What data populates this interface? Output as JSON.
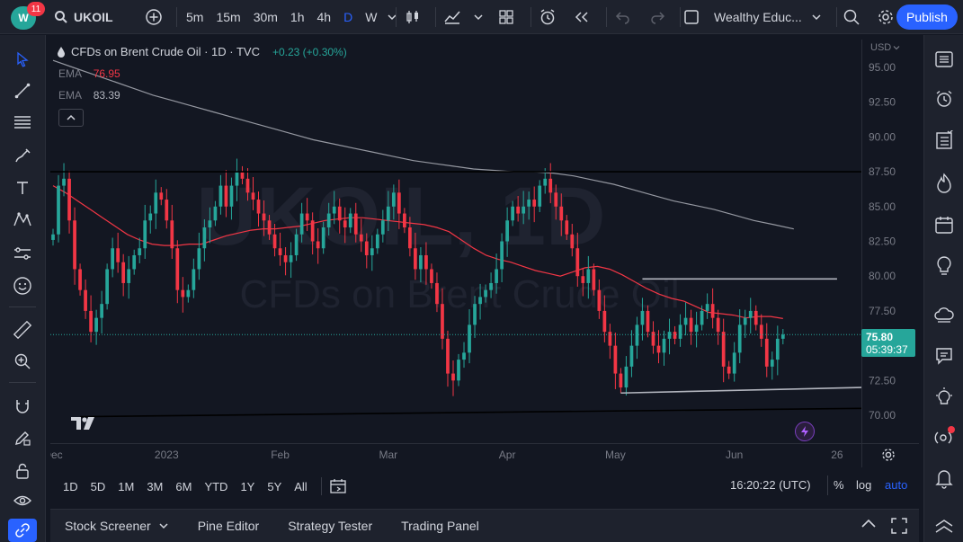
{
  "header": {
    "avatar_initials": "W",
    "notifications": "11",
    "symbol": "UKOIL",
    "intervals": [
      "5m",
      "15m",
      "30m",
      "1h",
      "4h",
      "D",
      "W"
    ],
    "active_interval": "D",
    "layout_name": "Wealthy Educ...",
    "publish_label": "Publish"
  },
  "legend": {
    "title": "CFDs on Brent Crude Oil · 1D · TVC",
    "change": "+0.23 (+0.30%)",
    "ema1_label": "EMA",
    "ema1_value": "76.95",
    "ema2_label": "EMA",
    "ema2_value": "83.39"
  },
  "watermark": {
    "symbol": "UKOIL, 1D",
    "description": "CFDs on Brent Crude Oil"
  },
  "axis": {
    "currency": "USD",
    "last_price": "75.80",
    "countdown": "05:39:37"
  },
  "range_bar": {
    "ranges": [
      "1D",
      "5D",
      "1M",
      "3M",
      "6M",
      "YTD",
      "1Y",
      "5Y",
      "All"
    ],
    "clock": "16:20:22 (UTC)",
    "percent_label": "%",
    "log_label": "log",
    "auto_label": "auto"
  },
  "bottom_panel": {
    "tabs": [
      "Stock Screener",
      "Pine Editor",
      "Strategy Tester",
      "Trading Panel"
    ]
  },
  "colors": {
    "up": "#26a69a",
    "down": "#f23645",
    "ema_fast": "#f23645",
    "ema_slow": "#9598a1",
    "accent": "#2962ff"
  },
  "chart_data": {
    "type": "candlestick",
    "ylim": [
      68.0,
      97.0
    ],
    "y_ticks": [
      70.0,
      72.5,
      75.0,
      77.5,
      80.0,
      82.5,
      85.0,
      87.5,
      90.0,
      92.5,
      95.0
    ],
    "y_tick_labels": [
      "70.00",
      "72.50",
      "",
      "77.50",
      "80.00",
      "82.50",
      "85.00",
      "87.50",
      "90.00",
      "92.50",
      "95.00"
    ],
    "x_ticks": [
      {
        "label": "Dec",
        "index": 0
      },
      {
        "label": "2023",
        "index": 21
      },
      {
        "label": "Feb",
        "index": 42
      },
      {
        "label": "Mar",
        "index": 62
      },
      {
        "label": "Apr",
        "index": 84
      },
      {
        "label": "May",
        "index": 104
      },
      {
        "label": "Jun",
        "index": 126
      },
      {
        "label": "26",
        "index": 145
      }
    ],
    "total_slots": 150,
    "closes": [
      83.0,
      86.5,
      87.0,
      84.0,
      80.5,
      79.0,
      77.5,
      76.0,
      77.0,
      78.0,
      80.5,
      82.0,
      81.0,
      79.5,
      80.5,
      81.5,
      82.0,
      84.0,
      84.5,
      86.0,
      85.5,
      84.0,
      82.0,
      79.0,
      78.5,
      79.0,
      80.5,
      82.0,
      83.5,
      84.0,
      85.0,
      86.5,
      85.0,
      86.5,
      87.5,
      87.0,
      86.0,
      85.5,
      84.5,
      84.0,
      83.0,
      82.0,
      81.5,
      81.0,
      81.5,
      83.0,
      84.5,
      84.0,
      82.5,
      82.0,
      83.5,
      84.5,
      85.0,
      84.0,
      83.5,
      84.5,
      83.0,
      82.5,
      81.5,
      82.0,
      83.0,
      84.0,
      85.0,
      86.0,
      84.5,
      83.5,
      82.0,
      80.5,
      81.5,
      80.5,
      79.5,
      78.0,
      75.5,
      73.0,
      72.5,
      74.0,
      74.5,
      76.5,
      78.0,
      78.5,
      79.0,
      79.5,
      80.5,
      82.5,
      84.0,
      85.0,
      84.5,
      85.0,
      85.5,
      85.0,
      86.5,
      87.0,
      86.0,
      85.0,
      84.0,
      83.0,
      82.0,
      80.0,
      79.5,
      80.5,
      79.0,
      77.5,
      76.0,
      75.0,
      73.0,
      72.0,
      73.5,
      75.0,
      76.5,
      77.5,
      76.0,
      75.0,
      74.5,
      75.5,
      76.0,
      75.5,
      76.5,
      77.0,
      76.0,
      76.5,
      77.5,
      78.0,
      77.0,
      76.0,
      73.5,
      73.0,
      74.5,
      76.5,
      77.0,
      77.5,
      76.5,
      75.5,
      73.5,
      74.0,
      75.5,
      75.8
    ],
    "ema_fast": [
      86.5,
      86.0,
      85.4,
      84.8,
      84.2,
      83.6,
      83.0,
      82.6,
      82.3,
      82.2,
      82.2,
      82.3,
      82.3,
      82.6,
      82.9,
      83.1,
      83.3,
      83.4,
      83.4,
      83.5,
      83.6,
      83.8,
      84.0,
      84.1,
      84.2,
      84.2,
      84.1,
      84.0,
      83.9,
      83.8,
      83.7,
      83.5,
      83.2,
      82.6,
      82.0,
      81.5,
      81.2,
      81.0,
      80.7,
      80.4,
      80.2,
      80.0,
      80.3,
      80.6,
      80.7,
      80.5,
      80.1,
      79.6,
      79.1,
      78.7,
      78.4,
      78.2,
      77.8,
      77.4,
      77.3,
      77.2,
      77.0,
      77.1,
      77.1,
      76.95
    ],
    "ema_fast_start": 0,
    "ema_slow": [
      95.5,
      95.0,
      94.5,
      94.0,
      93.5,
      93.0,
      92.6,
      92.2,
      91.8,
      91.4,
      91.0,
      90.6,
      90.2,
      89.8,
      89.5,
      89.2,
      88.9,
      88.6,
      88.3,
      88.1,
      87.9,
      87.7,
      87.6,
      87.5,
      87.5,
      87.4,
      87.2,
      86.9,
      86.6,
      86.2,
      85.8,
      85.4,
      85.1,
      84.8,
      84.4,
      84.0,
      83.7,
      83.39
    ],
    "ema_slow_end": 137,
    "resistance": {
      "y": 87.5
    },
    "support_trend": {
      "y_start": 69.9,
      "y_end": 70.5
    },
    "range_top": {
      "y": 79.8
    },
    "range_bottom": {
      "y_start": 71.6,
      "y_end": 72.0
    }
  }
}
